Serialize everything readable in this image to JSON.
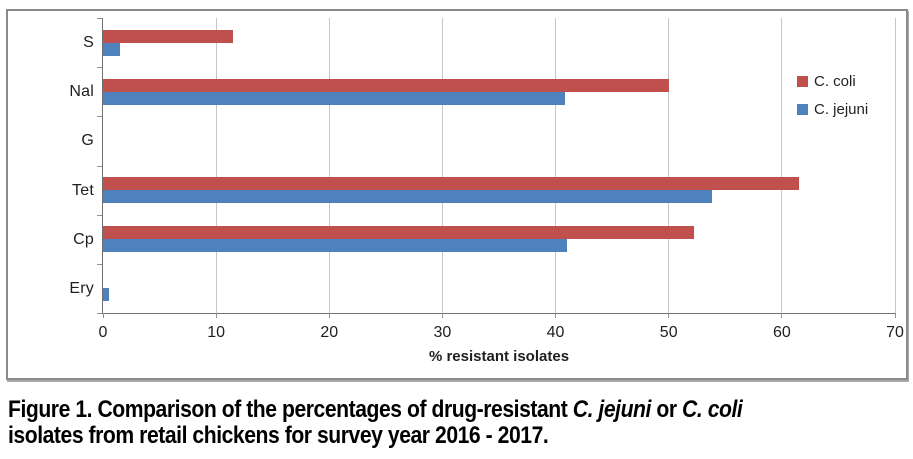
{
  "chart_data": {
    "type": "bar",
    "orientation": "horizontal",
    "categories": [
      "S",
      "Nal",
      "G",
      "Tet",
      "Cp",
      "Ery"
    ],
    "series": [
      {
        "name": "C. coli",
        "color": "#c0504d",
        "values": [
          11.5,
          50.0,
          0,
          61.5,
          52.2,
          0
        ]
      },
      {
        "name": "C. jejuni",
        "color": "#4f81bd",
        "values": [
          1.5,
          40.8,
          0,
          53.8,
          41.0,
          0.5
        ]
      }
    ],
    "xlabel": "% resistant isolates",
    "ylabel": "",
    "title": "",
    "xlim": [
      0,
      70
    ],
    "xticks": [
      0,
      10,
      20,
      30,
      40,
      50,
      60,
      70
    ],
    "grid": "vertical-only",
    "legend_position": "inside-right"
  },
  "colors": {
    "coli_red": "#c0504d",
    "jejuni_blue": "#4f81bd",
    "gridline": "#c6c6c6",
    "axis": "#707070",
    "frame_border": "#8a8a8a"
  },
  "caption": {
    "lines": [
      [
        {
          "text": "Figure 1. Comparison of the percentages of drug-resistant ",
          "italic": false
        },
        {
          "text": "C. jejuni",
          "italic": true
        },
        {
          "text": " or ",
          "italic": false
        },
        {
          "text": "C. coli",
          "italic": true
        }
      ],
      [
        {
          "text": "isolates from retail chickens for survey year 2016 - 2017.",
          "italic": false
        }
      ]
    ]
  }
}
